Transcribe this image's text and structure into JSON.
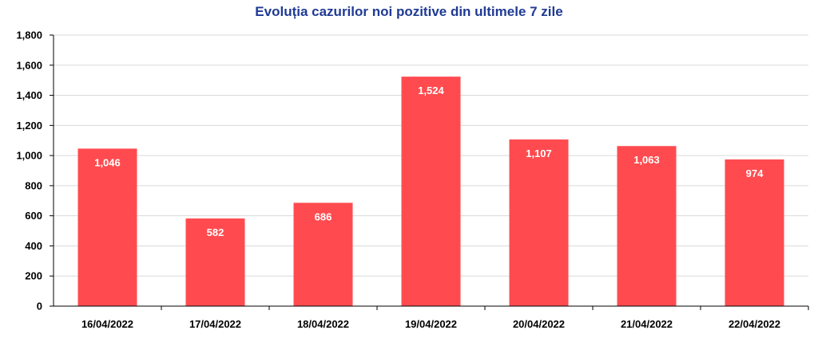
{
  "chart_data": {
    "type": "bar",
    "title": "Evoluția cazurilor noi pozitive din ultimele 7 zile",
    "categories": [
      "16/04/2022",
      "17/04/2022",
      "18/04/2022",
      "19/04/2022",
      "20/04/2022",
      "21/04/2022",
      "22/04/2022"
    ],
    "values": [
      1046,
      582,
      686,
      1524,
      1107,
      1063,
      974
    ],
    "value_labels": [
      "1,046",
      "582",
      "686",
      "1,524",
      "1,107",
      "1,063",
      "974"
    ],
    "ylim": [
      0,
      1800
    ],
    "yticks": [
      0,
      200,
      400,
      600,
      800,
      1000,
      1200,
      1400,
      1600,
      1800
    ],
    "ytick_labels": [
      "0",
      "200",
      "400",
      "600",
      "800",
      "1,000",
      "1,200",
      "1,400",
      "1,600",
      "1,800"
    ],
    "xlabel": "",
    "ylabel": "",
    "grid": true,
    "legend": "none",
    "colors": {
      "bar": "#ff4b4f",
      "grid": "#d9d9d9",
      "axis": "#000000",
      "title": "#1f3a93"
    }
  }
}
